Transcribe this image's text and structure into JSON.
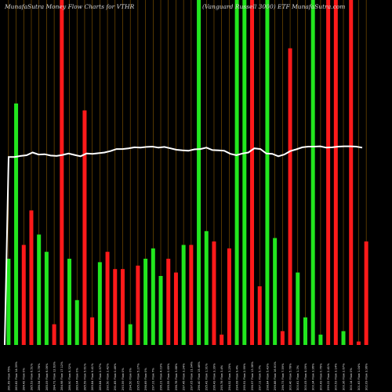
{
  "chart_data": {
    "type": "bar",
    "title_left": "MunafaSutra  Money Flow  Charts for VTHR",
    "title_right": "(Vanguard Russell 3000) ETF MunafaSutra.com",
    "grid": true,
    "colors": {
      "up": "#22e61e",
      "down": "#ff1a1a",
      "grid": "#8b5a00",
      "line": "#ffffff",
      "background": "#000000"
    },
    "ylim": [
      0,
      100
    ],
    "categories": [
      "281.69 Flow 75%",
      "283.82 Flow 14.39%",
      "284.42 Flow 0%",
      "285.53 Flow 6.51%",
      "286.54 Flow 3.78%",
      "285.09 Flow 6.06%",
      "284.71 Flow 12.63%",
      "284.98 Flow 17.12%",
      "286.90 Flow 6.32%",
      "289.04 Flow 0%",
      "285.59 Flow 5.61%",
      "289.84 Flow 9.41%",
      "289.84 Flow 2.97%",
      "290.50 Flow 2.42%",
      "291.85 Flow 0.46%",
      "293.59 Flow 0%",
      "294.50 Flow 0%",
      "295.05 Flow 5.27%",
      "296.69 Flow 0%",
      "297.31 Flow 7%",
      "296.21 Flow 4.03%",
      "295.55 Flow 0.69%",
      "296.78 Flow 3.88%",
      "297.45 Flow 3.24%",
      "297.05 Flow 11.04%",
      "296.40 Flow 15.46%",
      "295.41 Flow 1.91%",
      "296.43 Flow 3.39%",
      "295.78 Flow 3.4%",
      "294.52 Flow 3.25%",
      "294.08 Flow 9.4%",
      "295.51 Flow 2.99%",
      "296.97 Flow 13.38%",
      "297.11 Flow 5.7%",
      "298.84 Flow 5.43%",
      "299.88 Flow 16.61%",
      "296.73 Flow 7.59%",
      "300.40 Flow 5.78%",
      "300.61 Flow 1.3%",
      "300.05 Flow 4.09%",
      "300.34 Flow 3.96%",
      "300.43 Flow 0.76%",
      "299.22 Flow 2.41%",
      "300.53 Flow 3.14%",
      "300.36 Flow 2.67%",
      "300.14 Flow 0%",
      "301.63 Flow 1.04%",
      "302.09 Flow 3.96%"
    ],
    "series": [
      {
        "colors": [
          "g",
          "g",
          "r",
          "r",
          "g",
          "g",
          "r",
          "r",
          "g",
          "g",
          "r",
          "r",
          "g",
          "r",
          "r",
          "r",
          "g",
          "r",
          "g",
          "g",
          "g",
          "r",
          "r",
          "g",
          "r",
          "g",
          "g",
          "r",
          "r",
          "r",
          "g",
          "g",
          "r",
          "r",
          "g",
          "g",
          "r",
          "r",
          "g",
          "g",
          "g",
          "g",
          "r",
          "r",
          "g",
          "r",
          "r",
          "r"
        ],
        "values": [
          25,
          70,
          29,
          39,
          32,
          27,
          6,
          100,
          25,
          13,
          68,
          8,
          24,
          27,
          22,
          22,
          6,
          23,
          25,
          28,
          20,
          25,
          21,
          29,
          29,
          100,
          33,
          30,
          3,
          28,
          100,
          100,
          100,
          17,
          100,
          31,
          4,
          86,
          21,
          8,
          100,
          3,
          100,
          100,
          4,
          100,
          1,
          30
        ]
      }
    ],
    "price_line": [
      54.5,
      54.5,
      54.8,
      55,
      55.8,
      55.2,
      55.3,
      54.9,
      54.8,
      55.1,
      55.5,
      55.1,
      54.7,
      55.5,
      55.4,
      55.6,
      55.8,
      56.2,
      56.8,
      56.8,
      57.0,
      57.3,
      57.2,
      57.4,
      57.5,
      57.2,
      57.4,
      57.0,
      56.6,
      56.4,
      56.3,
      56.7,
      56.8,
      57.2,
      56.5,
      56.4,
      56.3,
      55.4,
      55.0,
      55.5,
      55.8,
      57.0,
      56.8,
      55.5,
      55.4,
      54.7,
      55.2,
      56.2,
      56.7,
      57.3,
      57.5,
      57.5,
      57.6,
      57.2,
      57.3,
      57.5,
      57.6,
      57.6,
      57.5,
      57.2
    ]
  }
}
